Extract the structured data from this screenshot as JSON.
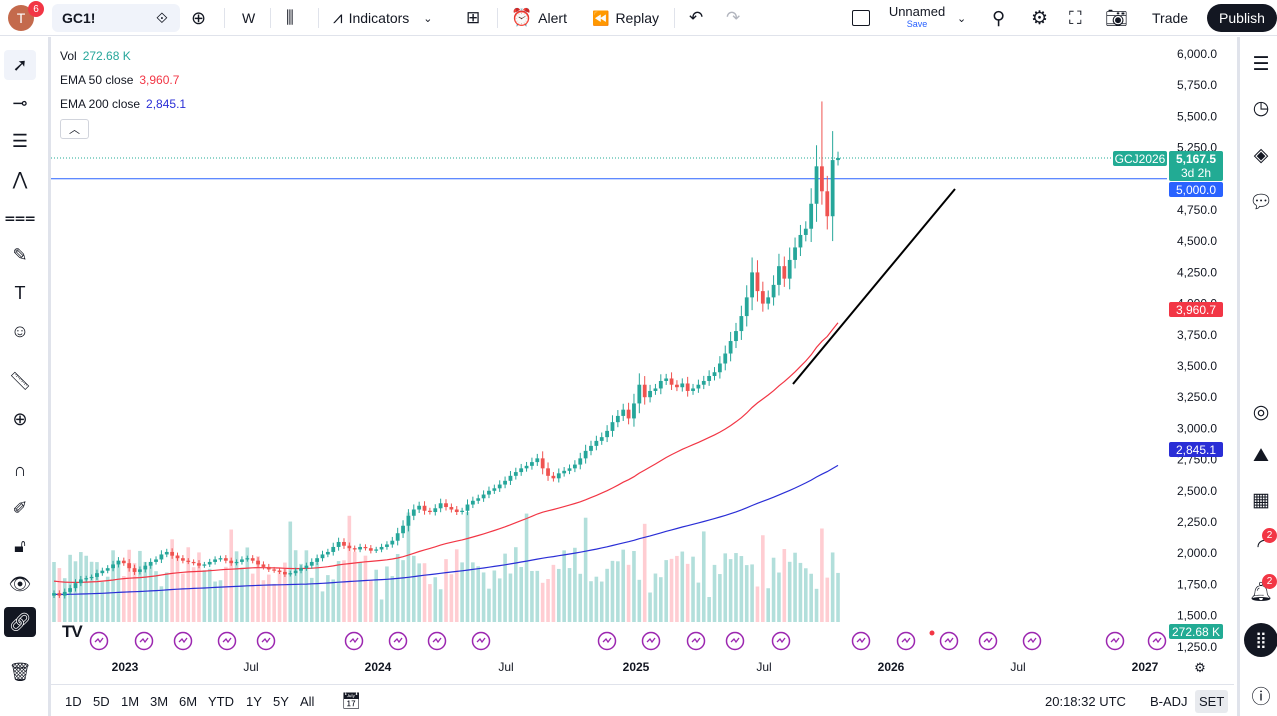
{
  "topbar": {
    "avatar_letter": "T",
    "avatar_badge": "6",
    "symbol": "GC1!",
    "interval": "W",
    "indicators": "Indicators",
    "alert": "Alert",
    "replay": "Replay",
    "layout_name": "Unnamed",
    "layout_status": "Save",
    "trade": "Trade",
    "publish": "Publish"
  },
  "legend": {
    "vol_label": "Vol",
    "vol_value": "272.68 K",
    "ema50_label": "EMA 50 close",
    "ema50_value": "3,960.7",
    "ema200_label": "EMA 200 close",
    "ema200_value": "2,845.1",
    "collapse_icon": "chevron-up-icon"
  },
  "price_axis": {
    "ticks": [
      "6,000.0",
      "5,750.0",
      "5,500.0",
      "5,250.0",
      "4,750.0",
      "4,500.0",
      "4,250.0",
      "4,000.0",
      "3,750.0",
      "3,500.0",
      "3,250.0",
      "3,000.0",
      "2,750.0",
      "2,500.0",
      "2,250.0",
      "2,000.0",
      "1,750.0",
      "1,500.0",
      "1,250.0"
    ],
    "last_price": "5,167.5",
    "countdown": "3d 2h",
    "symbol_tag": "GCJ2026",
    "hline_price": "5,000.0",
    "ema50_tag": "3,960.7",
    "ema200_tag": "2,845.1",
    "volume_tag": "272.68 K"
  },
  "time_axis": {
    "labels": [
      "2023",
      "Jul",
      "2024",
      "Jul",
      "2025",
      "Jul",
      "2026",
      "Jul",
      "2027"
    ]
  },
  "bottombar": {
    "ranges": [
      "1D",
      "5D",
      "1M",
      "3M",
      "6M",
      "YTD",
      "1Y",
      "5Y",
      "All"
    ],
    "clock": "20:18:32 UTC",
    "adj": "B-ADJ",
    "session": "SET"
  },
  "right_toolbar": {
    "badge_streams": "2",
    "badge_alerts": "2"
  },
  "colors": {
    "up": "#26a69a",
    "down": "#ef5350",
    "ema50": "#f23645",
    "ema200": "#2a2ed6",
    "hline": "#2962ff",
    "accent": "#2962ff",
    "volume_up": "#b2dfdb",
    "volume_down": "#ffcdd2"
  },
  "chart_data": {
    "type": "candlestick",
    "symbol": "GC1!",
    "interval": "W",
    "ylim": [
      1250,
      6000
    ],
    "start": "2022-11",
    "closes": [
      1680,
      1660,
      1690,
      1720,
      1760,
      1790,
      1800,
      1810,
      1840,
      1860,
      1880,
      1910,
      1940,
      1920,
      1880,
      1850,
      1870,
      1900,
      1930,
      1950,
      1990,
      2010,
      1980,
      1960,
      1940,
      1930,
      1920,
      1900,
      1910,
      1930,
      1950,
      1960,
      1940,
      1920,
      1930,
      1950,
      1960,
      1940,
      1910,
      1890,
      1870,
      1860,
      1850,
      1830,
      1840,
      1860,
      1880,
      1900,
      1930,
      1960,
      1990,
      2010,
      2050,
      2090,
      2060,
      2040,
      2030,
      2050,
      2040,
      2020,
      2030,
      2050,
      2070,
      2100,
      2160,
      2220,
      2300,
      2350,
      2380,
      2340,
      2330,
      2360,
      2400,
      2370,
      2350,
      2330,
      2340,
      2390,
      2420,
      2440,
      2470,
      2500,
      2520,
      2550,
      2580,
      2620,
      2650,
      2680,
      2700,
      2730,
      2760,
      2680,
      2620,
      2600,
      2640,
      2660,
      2680,
      2710,
      2760,
      2820,
      2860,
      2900,
      2930,
      2980,
      3050,
      3100,
      3150,
      3080,
      3200,
      3350,
      3250,
      3300,
      3320,
      3380,
      3400,
      3350,
      3330,
      3360,
      3300,
      3320,
      3350,
      3380,
      3420,
      3450,
      3520,
      3600,
      3700,
      3780,
      3900,
      4050,
      4250,
      4100,
      4000,
      4050,
      4150,
      4300,
      4200,
      4350,
      4450,
      4550,
      4600,
      4800,
      5100,
      4900,
      4700,
      5150,
      5167
    ],
    "ema50": {
      "name": "EMA 50 close",
      "last": 3960.7
    },
    "ema200": {
      "name": "EMA 200 close",
      "last": 2845.1
    },
    "horizontal_line": 5000,
    "trend_line": {
      "from": [
        3350,
        "2025-07"
      ],
      "to": [
        4900,
        "2026-02"
      ]
    }
  }
}
